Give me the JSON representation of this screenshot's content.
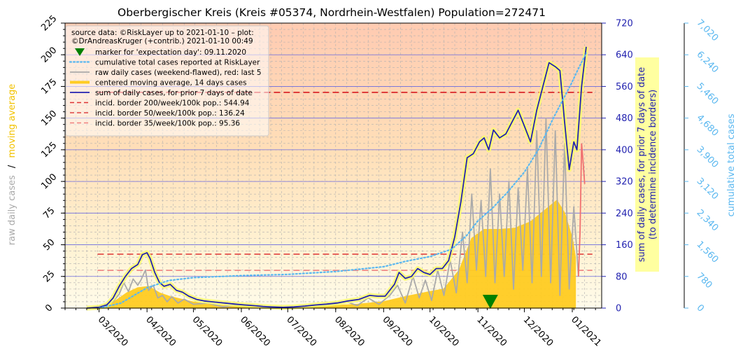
{
  "chart_data": {
    "type": "line",
    "title": "Oberbergischer Kreis (Kreis #05374, Nordrhein-Westfalen) Population=272471",
    "x_axis": {
      "type": "date",
      "range": [
        "2020-02-08",
        "2021-01-20"
      ],
      "tick_labels": [
        "03/2020",
        "04/2020",
        "05/2020",
        "06/2020",
        "07/2020",
        "08/2020",
        "09/2020",
        "10/2020",
        "11/2020",
        "12/2020",
        "01/2021"
      ],
      "tick_dates": [
        "2020-03-01",
        "2020-04-01",
        "2020-05-01",
        "2020-06-01",
        "2020-07-01",
        "2020-08-01",
        "2020-09-01",
        "2020-10-01",
        "2020-11-01",
        "2020-12-01",
        "2021-01-01"
      ]
    },
    "y_left": {
      "label_raw": "raw daily cases",
      "label_sep": "/",
      "label_avg": "moving average",
      "range": [
        0,
        225
      ],
      "ticks": [
        0,
        25,
        50,
        75,
        100,
        125,
        150,
        175,
        200,
        225
      ]
    },
    "y_right1": {
      "label_line1": "sum of daily cases, for prior 7 days of date",
      "label_line2": "(to determine incidence borders)",
      "range": [
        0,
        720
      ],
      "ticks": [
        0,
        80,
        160,
        240,
        320,
        400,
        480,
        560,
        640,
        720
      ]
    },
    "y_right2": {
      "label": "cumulative total cases",
      "range": [
        0,
        7020
      ],
      "tick_labels": [
        "0",
        "780",
        "1,560",
        "2,340",
        "3,120",
        "3,900",
        "4,680",
        "5,460",
        "6,240",
        "7,020"
      ],
      "ticks": [
        0,
        780,
        1560,
        2340,
        3120,
        3900,
        4680,
        5460,
        6240,
        7020
      ]
    },
    "legend": {
      "placement": "top-left",
      "source_line1": "source data: ©RiskLayer up to 2021-01-10 – plot:",
      "source_line2": "©DrAndreasKruger (+contrib.) 2021-01-10 00:49",
      "entries": [
        {
          "label": "marker for 'expectation day': 09.11.2020",
          "kind": "marker",
          "color": "#008000"
        },
        {
          "label": "cumulative total cases reported at RiskLayer",
          "kind": "dotted",
          "color": "#5bb8f0"
        },
        {
          "label": "raw daily cases (weekend-flawed), red: last 5",
          "kind": "line",
          "color": "#aaaaaa"
        },
        {
          "label": "centered moving average, 14 days cases",
          "kind": "thick",
          "color": "#ffcc22"
        },
        {
          "label": "sum of daily cases, for prior 7 days of date",
          "kind": "line",
          "color": "#2323b0"
        },
        {
          "label": "incid. border 200/week/100k pop.: 544.94",
          "kind": "dashed",
          "color": "#dd3333"
        },
        {
          "label": "incid. border 50/week/100k pop.: 136.24",
          "kind": "dashed",
          "color": "#dd4444"
        },
        {
          "label": "incid. border 35/week/100k pop.: 95.36",
          "kind": "dashed",
          "color": "#f08080"
        }
      ]
    },
    "incidence_borders": [
      {
        "per100k": 200,
        "value": 544.94,
        "color": "#dd3333",
        "opacity": 1.0
      },
      {
        "per100k": 50,
        "value": 136.24,
        "color": "#dd3333",
        "opacity": 0.85
      },
      {
        "per100k": 35,
        "value": 95.36,
        "color": "#f08080",
        "opacity": 0.9
      }
    ],
    "expectation_day": {
      "date": "2020-11-09",
      "value_left": 5
    },
    "series_sum7": {
      "color": "#2323b0",
      "points": [
        [
          "2020-02-22",
          0
        ],
        [
          "2020-03-01",
          2
        ],
        [
          "2020-03-06",
          8
        ],
        [
          "2020-03-10",
          25
        ],
        [
          "2020-03-14",
          55
        ],
        [
          "2020-03-18",
          80
        ],
        [
          "2020-03-22",
          100
        ],
        [
          "2020-03-26",
          110
        ],
        [
          "2020-03-29",
          135
        ],
        [
          "2020-04-01",
          140
        ],
        [
          "2020-04-03",
          125
        ],
        [
          "2020-04-06",
          90
        ],
        [
          "2020-04-09",
          65
        ],
        [
          "2020-04-12",
          55
        ],
        [
          "2020-04-16",
          60
        ],
        [
          "2020-04-20",
          45
        ],
        [
          "2020-04-24",
          40
        ],
        [
          "2020-04-28",
          30
        ],
        [
          "2020-05-03",
          22
        ],
        [
          "2020-05-08",
          18
        ],
        [
          "2020-05-13",
          16
        ],
        [
          "2020-05-18",
          14
        ],
        [
          "2020-05-23",
          12
        ],
        [
          "2020-05-28",
          10
        ],
        [
          "2020-06-03",
          8
        ],
        [
          "2020-06-10",
          6
        ],
        [
          "2020-06-15",
          4
        ],
        [
          "2020-06-20",
          3
        ],
        [
          "2020-06-28",
          2
        ],
        [
          "2020-07-05",
          3
        ],
        [
          "2020-07-12",
          5
        ],
        [
          "2020-07-19",
          8
        ],
        [
          "2020-07-26",
          10
        ],
        [
          "2020-08-02",
          13
        ],
        [
          "2020-08-09",
          18
        ],
        [
          "2020-08-16",
          22
        ],
        [
          "2020-08-23",
          32
        ],
        [
          "2020-08-28",
          30
        ],
        [
          "2020-09-02",
          30
        ],
        [
          "2020-09-08",
          60
        ],
        [
          "2020-09-11",
          90
        ],
        [
          "2020-09-15",
          75
        ],
        [
          "2020-09-19",
          80
        ],
        [
          "2020-09-23",
          100
        ],
        [
          "2020-09-27",
          90
        ],
        [
          "2020-10-01",
          85
        ],
        [
          "2020-10-05",
          100
        ],
        [
          "2020-10-09",
          100
        ],
        [
          "2020-10-13",
          120
        ],
        [
          "2020-10-17",
          180
        ],
        [
          "2020-10-21",
          270
        ],
        [
          "2020-10-25",
          380
        ],
        [
          "2020-10-29",
          390
        ],
        [
          "2020-11-02",
          420
        ],
        [
          "2020-11-05",
          430
        ],
        [
          "2020-11-08",
          400
        ],
        [
          "2020-11-11",
          450
        ],
        [
          "2020-11-15",
          430
        ],
        [
          "2020-11-19",
          440
        ],
        [
          "2020-11-23",
          470
        ],
        [
          "2020-11-27",
          500
        ],
        [
          "2020-12-01",
          460
        ],
        [
          "2020-12-05",
          420
        ],
        [
          "2020-12-09",
          500
        ],
        [
          "2020-12-13",
          560
        ],
        [
          "2020-12-17",
          620
        ],
        [
          "2020-12-21",
          610
        ],
        [
          "2020-12-24",
          600
        ],
        [
          "2020-12-27",
          470
        ],
        [
          "2020-12-30",
          350
        ],
        [
          "2021-01-02",
          420
        ],
        [
          "2021-01-04",
          400
        ],
        [
          "2021-01-07",
          560
        ],
        [
          "2021-01-10",
          660
        ]
      ]
    },
    "series_moving_avg": {
      "color": "#ffcc22",
      "points": [
        [
          "2020-02-22",
          0
        ],
        [
          "2020-03-05",
          2
        ],
        [
          "2020-03-12",
          6
        ],
        [
          "2020-03-19",
          12
        ],
        [
          "2020-03-26",
          16
        ],
        [
          "2020-04-02",
          17
        ],
        [
          "2020-04-09",
          12
        ],
        [
          "2020-04-16",
          9
        ],
        [
          "2020-04-23",
          7
        ],
        [
          "2020-04-30",
          5
        ],
        [
          "2020-05-10",
          3
        ],
        [
          "2020-05-20",
          2
        ],
        [
          "2020-06-01",
          1.5
        ],
        [
          "2020-06-15",
          1
        ],
        [
          "2020-07-01",
          0.8
        ],
        [
          "2020-07-15",
          1
        ],
        [
          "2020-08-01",
          2
        ],
        [
          "2020-08-15",
          3
        ],
        [
          "2020-09-01",
          5
        ],
        [
          "2020-09-15",
          9
        ],
        [
          "2020-10-01",
          13
        ],
        [
          "2020-10-10",
          15
        ],
        [
          "2020-10-20",
          30
        ],
        [
          "2020-10-28",
          55
        ],
        [
          "2020-11-05",
          62
        ],
        [
          "2020-11-15",
          62
        ],
        [
          "2020-11-25",
          63
        ],
        [
          "2020-12-05",
          68
        ],
        [
          "2020-12-15",
          78
        ],
        [
          "2020-12-22",
          85
        ],
        [
          "2020-12-27",
          75
        ],
        [
          "2021-01-01",
          55
        ],
        [
          "2021-01-03",
          40
        ]
      ]
    },
    "series_raw": {
      "color": "#aaaaaa",
      "points": [
        [
          "2020-02-24",
          0
        ],
        [
          "2020-03-05",
          3
        ],
        [
          "2020-03-10",
          5
        ],
        [
          "2020-03-14",
          11
        ],
        [
          "2020-03-17",
          20
        ],
        [
          "2020-03-20",
          13
        ],
        [
          "2020-03-23",
          23
        ],
        [
          "2020-03-26",
          18
        ],
        [
          "2020-03-28",
          22
        ],
        [
          "2020-03-31",
          30
        ],
        [
          "2020-04-02",
          14
        ],
        [
          "2020-04-05",
          18
        ],
        [
          "2020-04-08",
          8
        ],
        [
          "2020-04-11",
          10
        ],
        [
          "2020-04-14",
          5
        ],
        [
          "2020-04-17",
          9
        ],
        [
          "2020-04-21",
          4
        ],
        [
          "2020-04-25",
          7
        ],
        [
          "2020-05-01",
          3
        ],
        [
          "2020-05-10",
          4
        ],
        [
          "2020-05-20",
          1
        ],
        [
          "2020-06-01",
          3
        ],
        [
          "2020-06-15",
          1
        ],
        [
          "2020-07-01",
          0
        ],
        [
          "2020-07-15",
          2
        ],
        [
          "2020-08-01",
          3
        ],
        [
          "2020-08-08",
          5
        ],
        [
          "2020-08-15",
          2
        ],
        [
          "2020-08-22",
          8
        ],
        [
          "2020-08-29",
          3
        ],
        [
          "2020-09-05",
          10
        ],
        [
          "2020-09-10",
          18
        ],
        [
          "2020-09-15",
          4
        ],
        [
          "2020-09-20",
          25
        ],
        [
          "2020-09-24",
          8
        ],
        [
          "2020-09-28",
          22
        ],
        [
          "2020-10-02",
          6
        ],
        [
          "2020-10-06",
          30
        ],
        [
          "2020-10-10",
          10
        ],
        [
          "2020-10-14",
          38
        ],
        [
          "2020-10-18",
          12
        ],
        [
          "2020-10-22",
          60
        ],
        [
          "2020-10-25",
          20
        ],
        [
          "2020-10-28",
          90
        ],
        [
          "2020-10-31",
          30
        ],
        [
          "2020-11-03",
          85
        ],
        [
          "2020-11-06",
          25
        ],
        [
          "2020-11-09",
          110
        ],
        [
          "2020-11-12",
          20
        ],
        [
          "2020-11-15",
          90
        ],
        [
          "2020-11-18",
          25
        ],
        [
          "2020-11-21",
          100
        ],
        [
          "2020-11-24",
          15
        ],
        [
          "2020-11-27",
          95
        ],
        [
          "2020-11-30",
          30
        ],
        [
          "2020-12-03",
          110
        ],
        [
          "2020-12-06",
          20
        ],
        [
          "2020-12-09",
          140
        ],
        [
          "2020-12-12",
          25
        ],
        [
          "2020-12-15",
          150
        ],
        [
          "2020-12-18",
          20
        ],
        [
          "2020-12-21",
          140
        ],
        [
          "2020-12-24",
          10
        ],
        [
          "2020-12-27",
          130
        ],
        [
          "2020-12-30",
          15
        ],
        [
          "2021-01-02",
          80
        ],
        [
          "2021-01-05",
          25
        ]
      ]
    },
    "series_raw_last5": {
      "color": "#f07070",
      "points": [
        [
          "2021-01-05",
          25
        ],
        [
          "2021-01-06",
          60
        ],
        [
          "2021-01-07",
          130
        ],
        [
          "2021-01-08",
          115
        ],
        [
          "2021-01-09",
          98
        ]
      ]
    },
    "series_cumulative": {
      "color": "#5bb8f0",
      "points": [
        [
          "2020-03-01",
          0
        ],
        [
          "2020-03-15",
          120
        ],
        [
          "2020-04-01",
          500
        ],
        [
          "2020-04-15",
          680
        ],
        [
          "2020-05-01",
          750
        ],
        [
          "2020-06-01",
          800
        ],
        [
          "2020-07-01",
          830
        ],
        [
          "2020-08-01",
          900
        ],
        [
          "2020-09-01",
          1020
        ],
        [
          "2020-09-15",
          1150
        ],
        [
          "2020-10-01",
          1270
        ],
        [
          "2020-10-15",
          1450
        ],
        [
          "2020-10-25",
          1800
        ],
        [
          "2020-11-01",
          2150
        ],
        [
          "2020-11-10",
          2450
        ],
        [
          "2020-11-20",
          2850
        ],
        [
          "2020-12-01",
          3350
        ],
        [
          "2020-12-10",
          3900
        ],
        [
          "2020-12-20",
          4700
        ],
        [
          "2020-12-31",
          5500
        ],
        [
          "2021-01-05",
          5900
        ],
        [
          "2021-01-10",
          6280
        ]
      ]
    }
  }
}
